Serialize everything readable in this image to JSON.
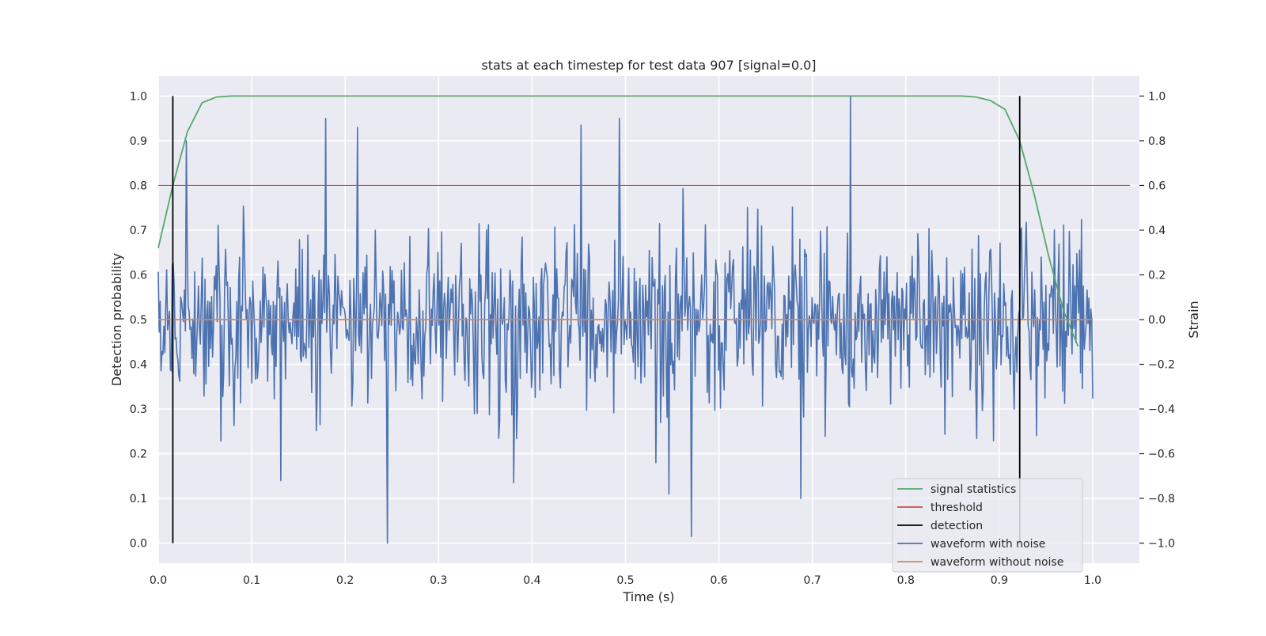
{
  "chart_data": {
    "type": "line",
    "title": "stats at each timestep for test data 907 [signal=0.0]",
    "xlabel": "Time (s)",
    "ylabel_left": "Detection probability",
    "ylabel_right": "Strain",
    "xlim": [
      0.0,
      1.05
    ],
    "ylim_left": [
      -0.045,
      1.045
    ],
    "ylim_right": [
      -1.09,
      1.09
    ],
    "x_ticks": [
      "0.0",
      "0.1",
      "0.2",
      "0.3",
      "0.4",
      "0.5",
      "0.6",
      "0.7",
      "0.8",
      "0.9",
      "1.0"
    ],
    "y_ticks_left": [
      "0.0",
      "0.1",
      "0.2",
      "0.3",
      "0.4",
      "0.5",
      "0.6",
      "0.7",
      "0.8",
      "0.9",
      "1.0"
    ],
    "y_ticks_right": [
      "−1.0",
      "−0.8",
      "−0.6",
      "−0.4",
      "−0.2",
      "0.0",
      "0.2",
      "0.4",
      "0.6",
      "0.8",
      "1.0"
    ],
    "grid": true,
    "legend_position": "lower-right",
    "series": [
      {
        "name": "signal statistics",
        "color": "#55a868",
        "axis": "left",
        "x": [
          0.0,
          0.0156,
          0.0312,
          0.0469,
          0.0625,
          0.0781,
          0.1,
          0.3,
          0.5,
          0.7,
          0.86,
          0.875,
          0.8906,
          0.9062,
          0.9219,
          0.9375,
          0.9531,
          0.9688,
          0.9844
        ],
        "y": [
          0.66,
          0.8,
          0.92,
          0.985,
          0.998,
          1.0,
          1.0,
          1.0,
          1.0,
          1.0,
          1.0,
          0.998,
          0.99,
          0.97,
          0.9,
          0.78,
          0.64,
          0.52,
          0.44
        ]
      },
      {
        "name": "threshold",
        "color": "#c44e52",
        "axis": "left",
        "x": [
          0.0,
          1.04
        ],
        "y": [
          0.8,
          0.8
        ]
      },
      {
        "name": "detection",
        "color": "#000000",
        "axis": "left",
        "segments": [
          {
            "x": 0.0156,
            "y0": 0.0,
            "y1": 1.0
          },
          {
            "x": 0.9219,
            "y0": 0.0,
            "y1": 1.0
          }
        ]
      },
      {
        "name": "waveform with noise",
        "color": "#4c72b0",
        "axis": "right",
        "description_of_values": "noise samples, 1000 points over 0..1 s",
        "x_range": [
          0.0,
          1.0
        ],
        "points": 1000,
        "amplitude_std": 0.2,
        "peaks": [
          {
            "x": 0.741,
            "y": 1.0
          },
          {
            "x": 0.245,
            "y": -1.0
          },
          {
            "x": 0.571,
            "y": -0.97
          },
          {
            "x": 0.179,
            "y": 0.9
          },
          {
            "x": 0.213,
            "y": 0.86
          },
          {
            "x": 0.03,
            "y": 0.8
          },
          {
            "x": 0.493,
            "y": 0.9
          },
          {
            "x": 0.452,
            "y": 0.87
          },
          {
            "x": 0.688,
            "y": -0.8
          },
          {
            "x": 0.547,
            "y": -0.78
          },
          {
            "x": 0.131,
            "y": -0.72
          },
          {
            "x": 0.38,
            "y": -0.73
          }
        ]
      },
      {
        "name": "waveform without noise",
        "color": "#dd8452",
        "axis": "right",
        "x": [
          0.0,
          1.0
        ],
        "y": [
          0.0,
          0.0
        ]
      }
    ]
  }
}
